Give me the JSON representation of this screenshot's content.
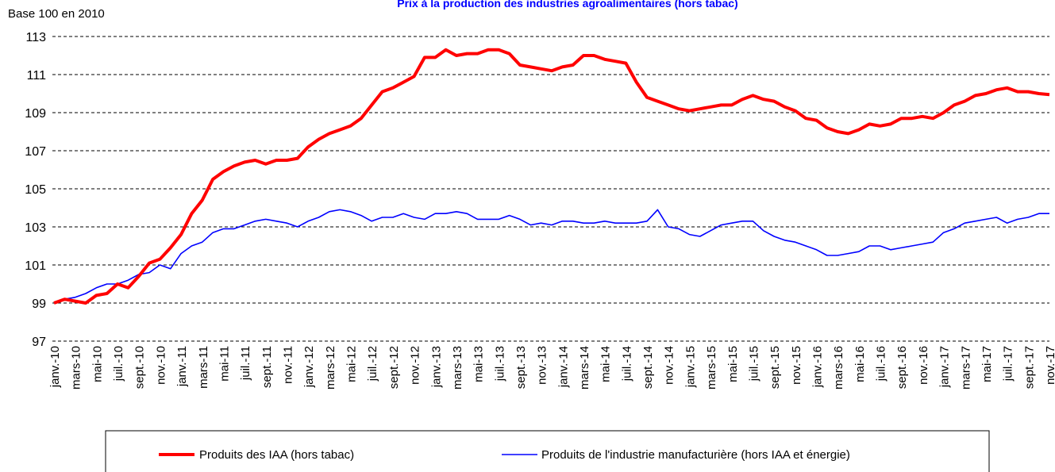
{
  "chart_data": {
    "type": "line",
    "title": "Prix à la production des industries agroalimentaires (hors tabac)",
    "y_label": "Base 100 en 2010",
    "categories": [
      "janv.-10",
      null,
      "mars-10",
      null,
      "mai-10",
      null,
      "juil.-10",
      null,
      "sept.-10",
      null,
      "nov.-10",
      null,
      "janv.-11",
      null,
      "mars-11",
      null,
      "mai-11",
      null,
      "juil.-11",
      null,
      "sept.-11",
      null,
      "nov.-11",
      null,
      "janv.-12",
      null,
      "mars-12",
      null,
      "mai-12",
      null,
      "juil.-12",
      null,
      "sept.-12",
      null,
      "nov.-12",
      null,
      "janv.-13",
      null,
      "mars-13",
      null,
      "mai-13",
      null,
      "juil.-13",
      null,
      "sept.-13",
      null,
      "nov.-13",
      null,
      "janv.-14",
      null,
      "mars-14",
      null,
      "mai-14",
      null,
      "juil.-14",
      null,
      "sept.-14",
      null,
      "nov.-14",
      null,
      "janv.-15",
      null,
      "mars-15",
      null,
      "mai-15",
      null,
      "juil.-15",
      null,
      "sept.-15",
      null,
      "nov.-15",
      null,
      "janv.-16",
      null,
      "mars-16",
      null,
      "mai-16",
      null,
      "juil.-16",
      null,
      "sept.-16",
      null,
      "nov.-16",
      null,
      "janv.-17",
      null,
      "mars-17",
      null,
      "mai-17",
      null,
      "juil.-17",
      null,
      "sept.-17",
      null,
      "nov.-17"
    ],
    "series": [
      {
        "name": "Produits des IAA (hors tabac)",
        "color": "#ff0000",
        "width": 4,
        "values": [
          99.0,
          99.2,
          99.1,
          99.0,
          99.4,
          99.5,
          100.0,
          99.8,
          100.4,
          101.1,
          101.3,
          101.9,
          102.6,
          103.7,
          104.4,
          105.5,
          105.9,
          106.2,
          106.4,
          106.5,
          106.3,
          106.5,
          106.5,
          106.6,
          107.2,
          107.6,
          107.9,
          108.1,
          108.3,
          108.7,
          109.4,
          110.1,
          110.3,
          110.6,
          110.9,
          111.9,
          111.9,
          112.3,
          112.0,
          112.1,
          112.1,
          112.3,
          112.3,
          112.1,
          111.5,
          111.4,
          111.3,
          111.2,
          111.4,
          111.5,
          112.0,
          112.0,
          111.8,
          111.7,
          111.6,
          110.6,
          109.8,
          109.6,
          109.4,
          109.2,
          109.1,
          109.2,
          109.3,
          109.4,
          109.4,
          109.7,
          109.9,
          109.7,
          109.6,
          109.3,
          109.1,
          108.7,
          108.6,
          108.2,
          108.0,
          107.9,
          108.1,
          108.4,
          108.3,
          108.4,
          108.7,
          108.7,
          108.8,
          108.7,
          109.0,
          109.4,
          109.6,
          109.9,
          110.0,
          110.2,
          110.3,
          110.1,
          110.1,
          110.0,
          109.95
        ]
      },
      {
        "name": "Produits de l'industrie manufacturière (hors IAA et énergie)",
        "color": "#0000ff",
        "width": 1.6,
        "values": [
          99.0,
          99.2,
          99.3,
          99.5,
          99.8,
          100.0,
          100.0,
          100.2,
          100.5,
          100.6,
          101.0,
          100.8,
          101.6,
          102.0,
          102.2,
          102.7,
          102.9,
          102.9,
          103.1,
          103.3,
          103.4,
          103.3,
          103.2,
          103.0,
          103.3,
          103.5,
          103.8,
          103.9,
          103.8,
          103.6,
          103.3,
          103.5,
          103.5,
          103.7,
          103.5,
          103.4,
          103.7,
          103.7,
          103.8,
          103.7,
          103.4,
          103.4,
          103.4,
          103.6,
          103.4,
          103.1,
          103.2,
          103.1,
          103.3,
          103.3,
          103.2,
          103.2,
          103.3,
          103.2,
          103.2,
          103.2,
          103.3,
          103.9,
          103.0,
          102.9,
          102.6,
          102.5,
          102.8,
          103.1,
          103.2,
          103.3,
          103.3,
          102.8,
          102.5,
          102.3,
          102.2,
          102.0,
          101.8,
          101.5,
          101.5,
          101.6,
          101.7,
          102.0,
          102.0,
          101.8,
          101.9,
          102.0,
          102.1,
          102.2,
          102.7,
          102.9,
          103.2,
          103.3,
          103.4,
          103.5,
          103.2,
          103.4,
          103.5,
          103.7,
          103.7
        ]
      }
    ],
    "ylim": [
      97,
      113
    ],
    "yticks": [
      97,
      99,
      101,
      103,
      105,
      107,
      109,
      111,
      113
    ],
    "grid": true
  }
}
